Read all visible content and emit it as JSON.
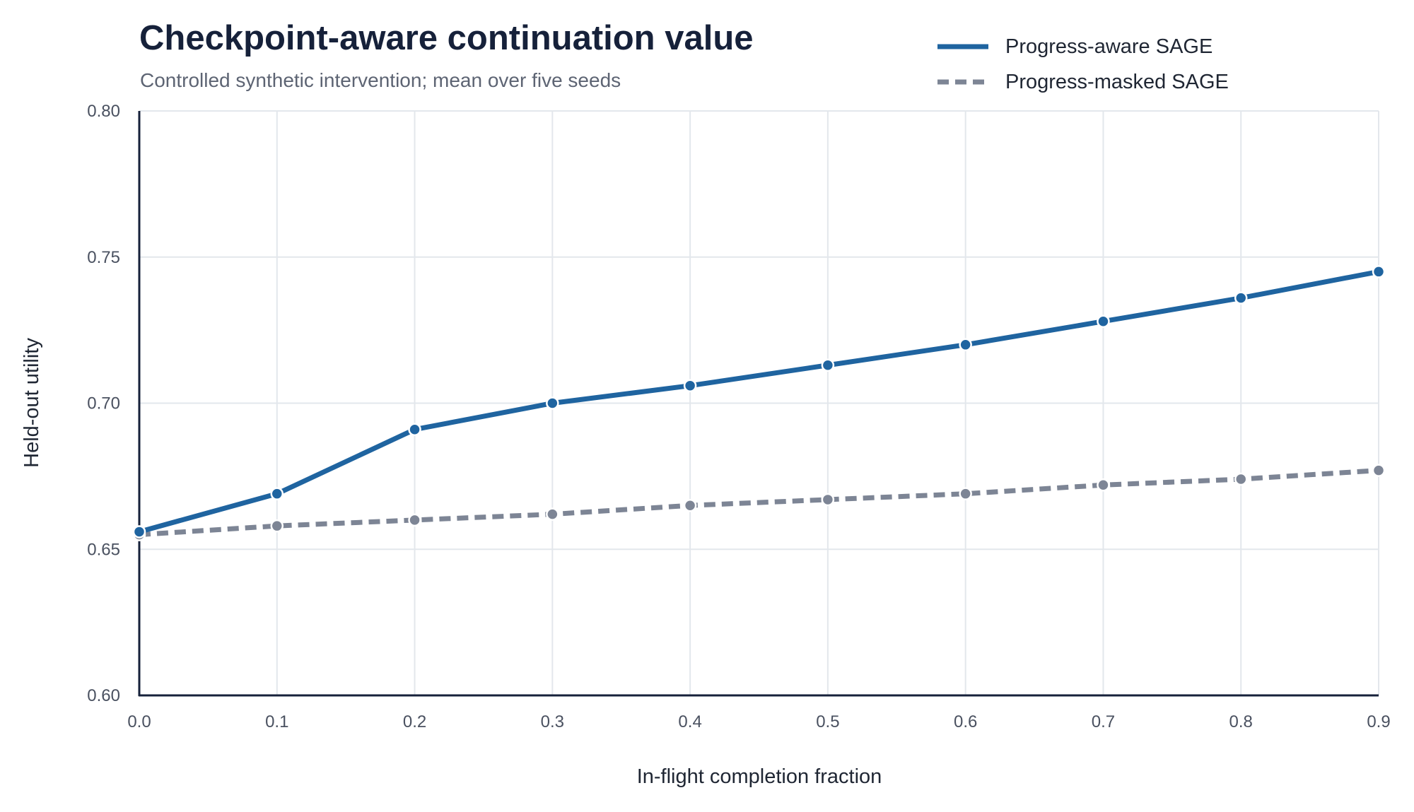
{
  "chart_data": {
    "type": "line",
    "title": "Checkpoint-aware continuation value",
    "subtitle": "Controlled synthetic intervention; mean over five seeds",
    "xlabel": "In-flight completion fraction",
    "ylabel": "Held-out utility",
    "x": [
      0.0,
      0.1,
      0.2,
      0.3,
      0.4,
      0.5,
      0.6,
      0.7,
      0.8,
      0.9
    ],
    "x_tick_labels": [
      "0.0",
      "0.1",
      "0.2",
      "0.3",
      "0.4",
      "0.5",
      "0.6",
      "0.7",
      "0.8",
      "0.9"
    ],
    "y_tick_values": [
      0.6,
      0.65,
      0.7,
      0.75,
      0.8
    ],
    "y_tick_labels": [
      "0.60",
      "0.65",
      "0.70",
      "0.75",
      "0.80"
    ],
    "xlim": [
      0.0,
      0.9
    ],
    "ylim": [
      0.6,
      0.8
    ],
    "grid": true,
    "legend_position": "top-right",
    "series": [
      {
        "name": "Progress-aware SAGE",
        "color": "#1f64a0",
        "style": "solid",
        "values": [
          0.656,
          0.669,
          0.691,
          0.7,
          0.706,
          0.713,
          0.72,
          0.728,
          0.736,
          0.745
        ]
      },
      {
        "name": "Progress-masked SAGE",
        "color": "#7d8595",
        "style": "dashed",
        "values": [
          0.655,
          0.658,
          0.66,
          0.662,
          0.665,
          0.667,
          0.669,
          0.672,
          0.674,
          0.677
        ]
      }
    ]
  }
}
